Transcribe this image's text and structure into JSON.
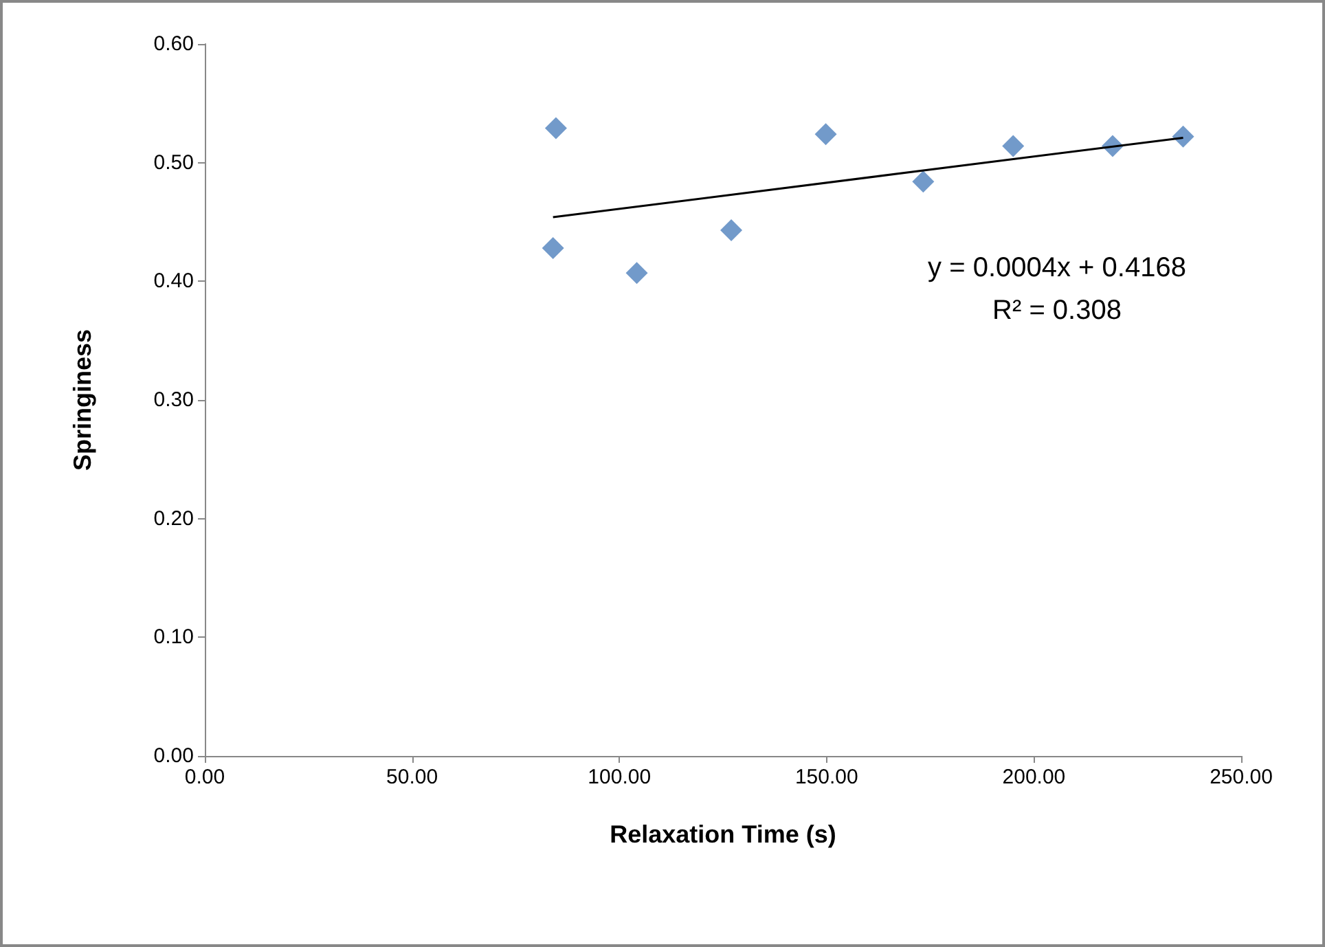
{
  "chart_data": {
    "type": "scatter",
    "xlabel": "Relaxation Time (s)",
    "ylabel": "Springiness",
    "series": [
      {
        "color": "#4f81bd",
        "marker": "diamond",
        "x": [
          84.7,
          84.0,
          104.2,
          127.0,
          149.8,
          173.3,
          195.0,
          219.0,
          236.0
        ],
        "values": [
          0.529,
          0.428,
          0.407,
          0.443,
          0.524,
          0.484,
          0.514,
          0.514,
          0.522
        ]
      },
      {
        "type": "line",
        "color": "#000000",
        "marker": "none",
        "x": [
          84.0,
          236.0
        ],
        "values": [
          0.454,
          0.521
        ]
      }
    ],
    "xlim": [
      0,
      250
    ],
    "xticks": [
      {
        "value": 0,
        "label": "0.00"
      },
      {
        "value": 50,
        "label": "50.00"
      },
      {
        "value": 100,
        "label": "100.00"
      },
      {
        "value": 150,
        "label": "150.00"
      },
      {
        "value": 200,
        "label": "200.00"
      },
      {
        "value": 250,
        "label": "250.00"
      }
    ],
    "ylim": [
      0,
      0.6
    ],
    "yticks": [
      {
        "value": 0,
        "label": "0.00"
      },
      {
        "value": 0.1,
        "label": "0.10"
      },
      {
        "value": 0.2,
        "label": "0.20"
      },
      {
        "value": 0.3,
        "label": "0.30"
      },
      {
        "value": 0.4,
        "label": "0.40"
      },
      {
        "value": 0.5,
        "label": "0.50"
      },
      {
        "value": 0.6,
        "label": "0.60"
      }
    ],
    "annotations": [
      "y = 0.0004x + 0.4168",
      "R² = 0.308"
    ],
    "grid": false
  }
}
